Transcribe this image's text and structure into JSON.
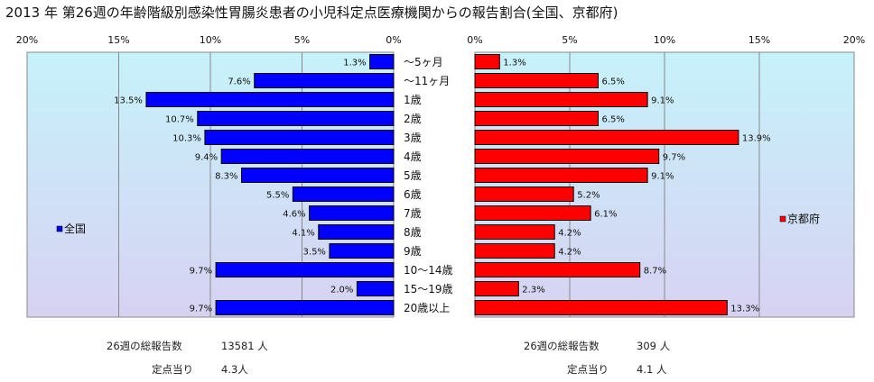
{
  "title": "2013 年 第26週の年齢階級別感染性胃腸炎患者の小児科定点医療機関からの報告割合(全国、京都府)",
  "colors": {
    "national_bar": "#0000ff",
    "kyoto_bar": "#ff0000",
    "plot_bg_top": "#c6f2fb",
    "plot_bg_bottom": "#d7d2f2",
    "gridline": "#888888",
    "frame": "#888888"
  },
  "chart_data": {
    "type": "bar",
    "orientation": "horizontal",
    "categories": [
      "～5ヶ月",
      "～11ヶ月",
      "1歳",
      "2歳",
      "3歳",
      "4歳",
      "5歳",
      "6歳",
      "7歳",
      "8歳",
      "9歳",
      "10～14歳",
      "15～19歳",
      "20歳以上"
    ],
    "series": [
      {
        "name": "全国",
        "values": [
          1.3,
          7.6,
          13.5,
          10.7,
          10.3,
          9.4,
          8.3,
          5.5,
          4.6,
          4.1,
          3.5,
          9.7,
          2.0,
          9.7
        ],
        "labels": [
          "1.3%",
          "7.6%",
          "13.5%",
          "10.7%",
          "10.3%",
          "9.4%",
          "8.3%",
          "5.5%",
          "4.6%",
          "4.1%",
          "3.5%",
          "9.7%",
          "2.0%",
          "9.7%"
        ],
        "direction": "left"
      },
      {
        "name": "京都府",
        "values": [
          1.3,
          6.5,
          9.1,
          6.5,
          13.9,
          9.7,
          9.1,
          5.2,
          6.1,
          4.2,
          4.2,
          8.7,
          2.3,
          13.3
        ],
        "labels": [
          "1.3%",
          "6.5%",
          "9.1%",
          "6.5%",
          "13.9%",
          "9.7%",
          "9.1%",
          "5.2%",
          "6.1%",
          "4.2%",
          "4.2%",
          "8.7%",
          "2.3%",
          "13.3%"
        ],
        "direction": "right"
      }
    ],
    "xlim": [
      0,
      20
    ],
    "ticks": [
      0,
      5,
      10,
      15,
      20
    ],
    "tick_labels_left": [
      "0%",
      "5%",
      "10%",
      "15%",
      "20%"
    ],
    "tick_labels_right": [
      "0%",
      "5%",
      "10%",
      "15%",
      "20%"
    ],
    "grid": true,
    "legend": [
      "全国",
      "京都府"
    ]
  },
  "footer": {
    "national_total_label": "26週の総報告数",
    "national_total_value": "13581 人",
    "national_per_label": "定点当り",
    "national_per_value": "4.3人",
    "kyoto_total_label": "26週の総報告数",
    "kyoto_total_value": "309 人",
    "kyoto_per_label": "定点当り",
    "kyoto_per_value": "4.1 人"
  }
}
